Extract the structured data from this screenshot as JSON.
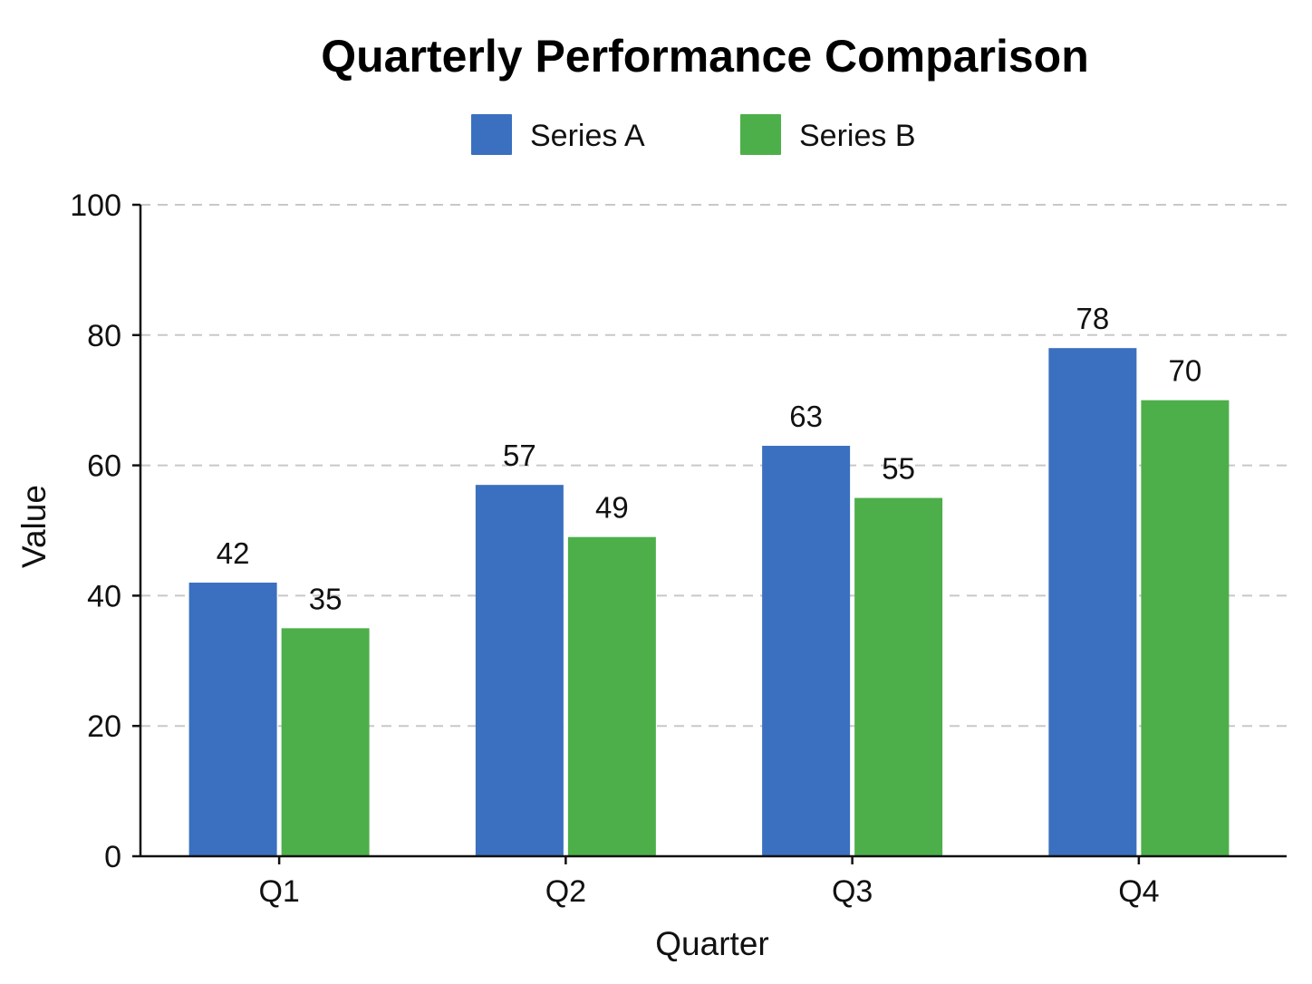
{
  "chart_data": {
    "type": "bar",
    "title": "Quarterly Performance Comparison",
    "xlabel": "Quarter",
    "ylabel": "Value",
    "categories": [
      "Q1",
      "Q2",
      "Q3",
      "Q4"
    ],
    "series": [
      {
        "name": "Series A",
        "values": [
          42,
          57,
          63,
          78
        ],
        "color": "#3a70bf"
      },
      {
        "name": "Series B",
        "values": [
          35,
          49,
          55,
          70
        ],
        "color": "#4daf4a"
      }
    ],
    "ylim": [
      0,
      100
    ],
    "yticks": [
      0,
      20,
      40,
      60,
      80,
      100
    ],
    "grid": true,
    "legend_position": "top-center",
    "data_labels": true
  }
}
